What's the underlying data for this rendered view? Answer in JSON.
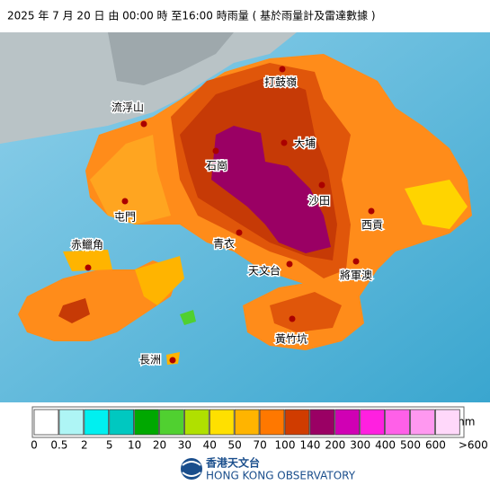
{
  "title": "2025 年  7 月 20 日  由 00:00  時 至16:00  時雨量 ( 基於雨量計及雷達數據 )",
  "places": [
    "打鼓嶺",
    "流浮山",
    "大埔",
    "石崗",
    "沙田",
    "屯門",
    "西貢",
    "青衣",
    "赤鱲角",
    "天文台",
    "將軍澳",
    "黃竹坑",
    "長洲"
  ],
  "legend": {
    "colors": [
      "#ffffff",
      "#aef5f5",
      "#00f0f0",
      "#00c8c0",
      "#00a800",
      "#50d030",
      "#b0e000",
      "#ffe000",
      "#ffb400",
      "#ff7800",
      "#d03c00",
      "#9a0064",
      "#d000b4",
      "#ff20e0",
      "#ff60e8",
      "#ff98f0",
      "#ffd8fa"
    ],
    "labels": [
      "0",
      "0.5",
      "2",
      "5",
      "10",
      "20",
      "30",
      "40",
      "50",
      "70",
      "100",
      "140",
      "200",
      "300",
      "400",
      "500",
      "600",
      ">600"
    ],
    "unit": "mm"
  },
  "logo": {
    "name": "香港天文台",
    "english": "HONG KONG OBSERVATORY"
  }
}
